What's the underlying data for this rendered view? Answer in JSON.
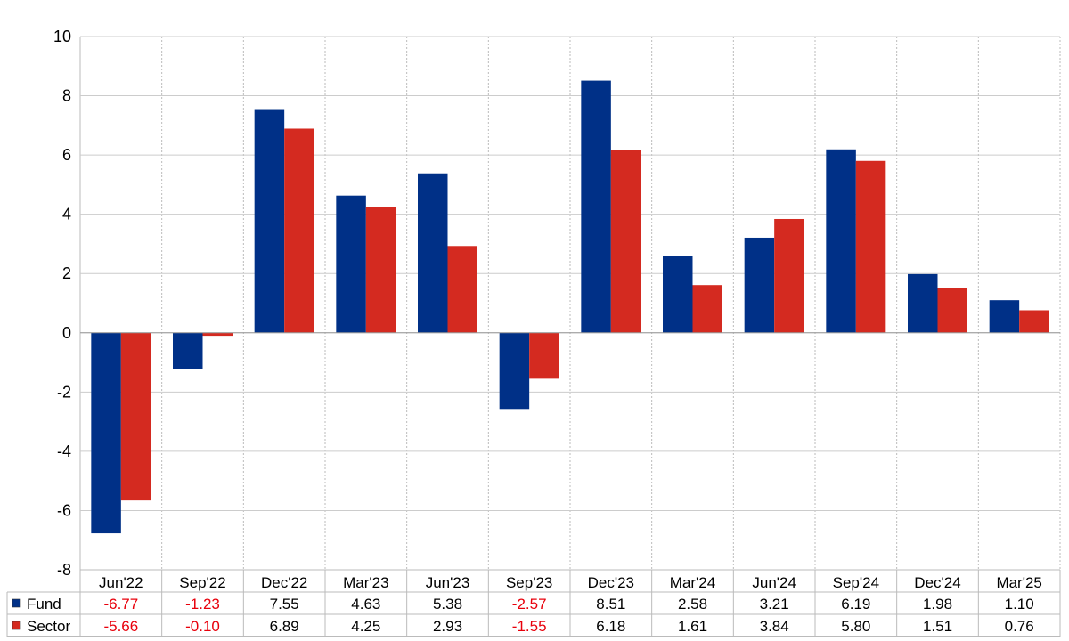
{
  "chart_data": {
    "type": "bar",
    "title": "",
    "xlabel": "",
    "ylabel": "",
    "ylim": [
      -8,
      10
    ],
    "yticks": [
      10,
      8,
      6,
      4,
      2,
      0,
      -2,
      -4,
      -6,
      -8
    ],
    "grid": true,
    "legend": "data-table-left",
    "categories": [
      "Jun'22",
      "Sep'22",
      "Dec'22",
      "Mar'23",
      "Jun'23",
      "Sep'23",
      "Dec'23",
      "Mar'24",
      "Jun'24",
      "Sep'24",
      "Dec'24",
      "Mar'25"
    ],
    "series": [
      {
        "name": "Fund",
        "color": "#003087",
        "values": [
          -6.77,
          -1.23,
          7.55,
          4.63,
          5.38,
          -2.57,
          8.51,
          2.58,
          3.21,
          6.19,
          1.98,
          1.1
        ],
        "labels": [
          "-6.77",
          "-1.23",
          "7.55",
          "4.63",
          "5.38",
          "-2.57",
          "8.51",
          "2.58",
          "3.21",
          "6.19",
          "1.98",
          "1.10"
        ]
      },
      {
        "name": "Sector",
        "color": "#d42a20",
        "values": [
          -5.66,
          -0.1,
          6.89,
          4.25,
          2.93,
          -1.55,
          6.18,
          1.61,
          3.84,
          5.8,
          1.51,
          0.76
        ],
        "labels": [
          "-5.66",
          "-0.10",
          "6.89",
          "4.25",
          "2.93",
          "-1.55",
          "6.18",
          "1.61",
          "3.84",
          "5.80",
          "1.51",
          "0.76"
        ]
      }
    ],
    "negative_value_color": "#e8000b"
  }
}
